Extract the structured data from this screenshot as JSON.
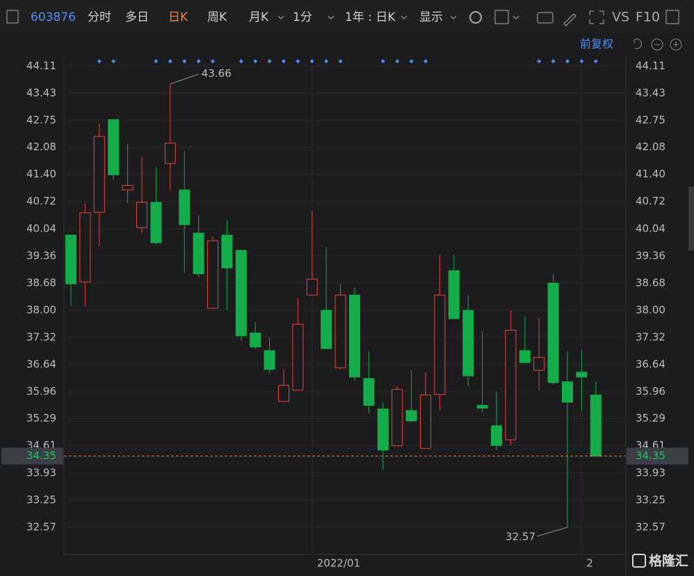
{
  "toolbar": {
    "code": "603876",
    "tabs": [
      "分时",
      "多日",
      "日K",
      "周K",
      "月K",
      "1分"
    ],
    "period": "1年 : 日K",
    "display": "显示",
    "vs": "VS",
    "f10": "F10"
  },
  "adjust": "前复权",
  "watermark": "格隆汇",
  "chart_data": {
    "type": "candlestick",
    "categories": [
      null,
      null,
      null,
      null,
      null,
      null,
      null,
      null,
      null,
      null,
      null,
      null,
      null,
      null,
      null,
      null,
      null,
      "2022/01",
      null,
      null,
      null,
      null,
      null,
      null,
      null,
      null,
      null,
      null,
      null,
      null,
      null,
      null,
      null,
      null,
      null,
      null,
      "2",
      null
    ],
    "open": [
      39.88,
      38.71,
      40.45,
      42.77,
      41.01,
      40.07,
      40.7,
      41.67,
      41.01,
      39.93,
      38.05,
      39.88,
      39.5,
      37.43,
      36.99,
      35.72,
      36.0,
      38.38,
      38.0,
      36.56,
      38.38,
      36.29,
      35.53,
      34.61,
      35.49,
      34.54,
      35.89,
      38.99,
      38.0,
      35.62,
      35.11,
      34.76,
      36.99,
      36.5,
      38.68,
      36.21,
      36.45,
      35.88
    ],
    "high": [
      39.88,
      40.68,
      42.67,
      42.77,
      42.16,
      41.83,
      41.57,
      43.66,
      41.97,
      40.37,
      39.85,
      40.25,
      39.5,
      37.7,
      37.32,
      36.52,
      38.31,
      40.49,
      39.58,
      38.66,
      38.57,
      36.97,
      35.7,
      36.1,
      36.5,
      36.45,
      39.38,
      39.38,
      38.37,
      37.48,
      35.96,
      38.0,
      37.84,
      37.81,
      38.91,
      36.97,
      37.01,
      36.21
    ],
    "low": [
      38.1,
      38.09,
      39.6,
      41.27,
      40.68,
      39.93,
      39.65,
      40.98,
      38.94,
      38.82,
      38.05,
      38.0,
      37.23,
      37.03,
      36.42,
      35.72,
      36.0,
      38.38,
      37.04,
      36.52,
      36.22,
      35.42,
      34.01,
      34.61,
      35.21,
      34.54,
      35.51,
      37.76,
      36.1,
      35.44,
      34.5,
      34.62,
      36.68,
      36.0,
      36.14,
      32.57,
      35.49,
      34.35
    ],
    "close": [
      38.66,
      40.44,
      42.35,
      41.39,
      41.12,
      40.7,
      39.69,
      42.18,
      40.14,
      38.91,
      39.74,
      39.06,
      37.36,
      37.08,
      36.52,
      36.12,
      37.65,
      38.78,
      37.04,
      38.38,
      36.33,
      35.62,
      34.5,
      36.02,
      35.23,
      35.88,
      38.38,
      37.79,
      36.36,
      35.55,
      34.62,
      37.5,
      36.69,
      36.82,
      36.19,
      35.7,
      36.33,
      34.35
    ],
    "up_color": "#e8463c",
    "down_color": "#15ad4c",
    "ylim": [
      31.89,
      44.37
    ],
    "yticks": [
      44.11,
      43.43,
      42.75,
      42.08,
      {
        "value": 41.4,
        "label": "41.40"
      },
      40.72,
      40.04,
      39.36,
      38.68,
      {
        "value": 38,
        "label": "38.00"
      },
      37.32,
      36.64,
      35.96,
      35.29,
      34.61,
      33.93,
      33.25,
      32.57
    ],
    "grid": true
  }
}
